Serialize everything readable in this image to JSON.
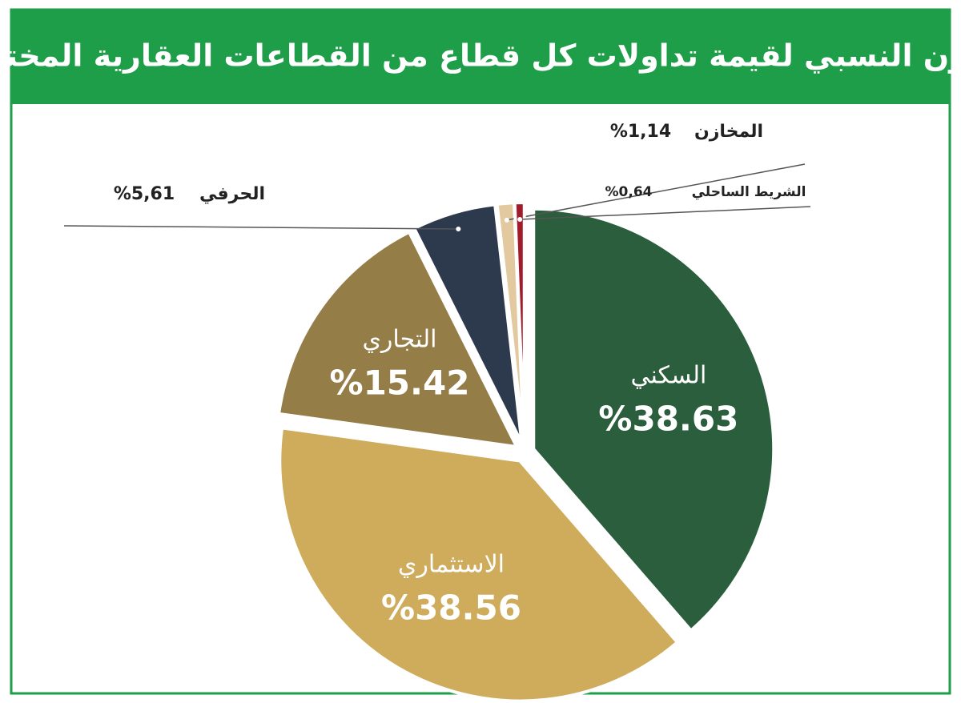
{
  "chart_data": {
    "type": "pie",
    "title": "الوزن النسبي لقيمة تداولات كل قطاع من القطاعات العقارية المختلفة",
    "categories": [
      "السكني",
      "الاستثماري",
      "التجاري",
      "الحرفي",
      "المخازن",
      "الشريط الساحلي"
    ],
    "values": [
      38.63,
      38.56,
      15.42,
      5.61,
      1.14,
      0.64
    ],
    "value_labels": [
      "%38.63",
      "%38.56",
      "%15.42",
      "%5,61",
      "%1,14",
      "%0,64"
    ],
    "colors": [
      "#2a5e3c",
      "#cfab5c",
      "#957d48",
      "#2d3a4e",
      "#e3c9a0",
      "#a11b2a"
    ]
  }
}
